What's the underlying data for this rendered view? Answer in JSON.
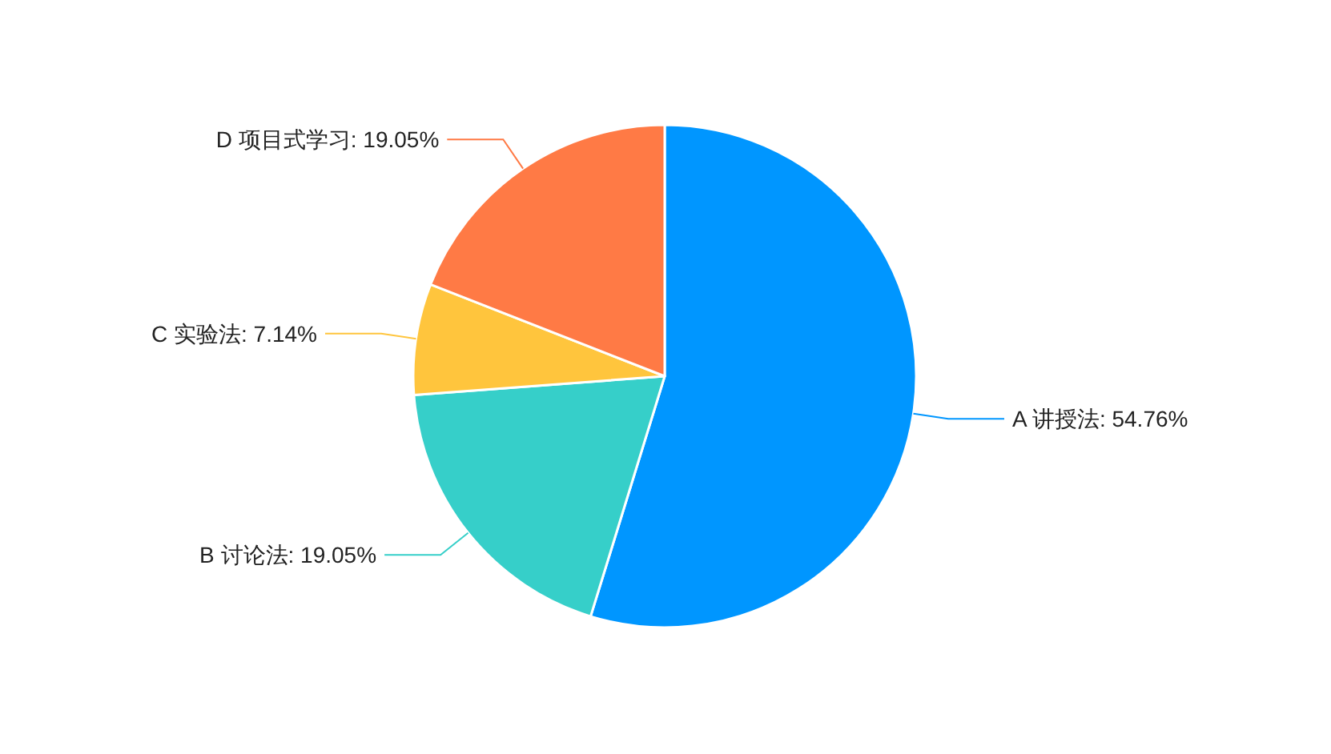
{
  "chart_data": {
    "type": "pie",
    "categories": [
      "A 讲授法",
      "B 讨论法",
      "C 实验法",
      "D 项目式学习"
    ],
    "values": [
      54.76,
      19.05,
      7.14,
      19.05
    ],
    "value_labels": [
      "54.76%",
      "19.05%",
      "7.14%",
      "19.05%"
    ],
    "colors": [
      "#0096ff",
      "#36cfc9",
      "#ffc53d",
      "#ff7a45"
    ]
  }
}
